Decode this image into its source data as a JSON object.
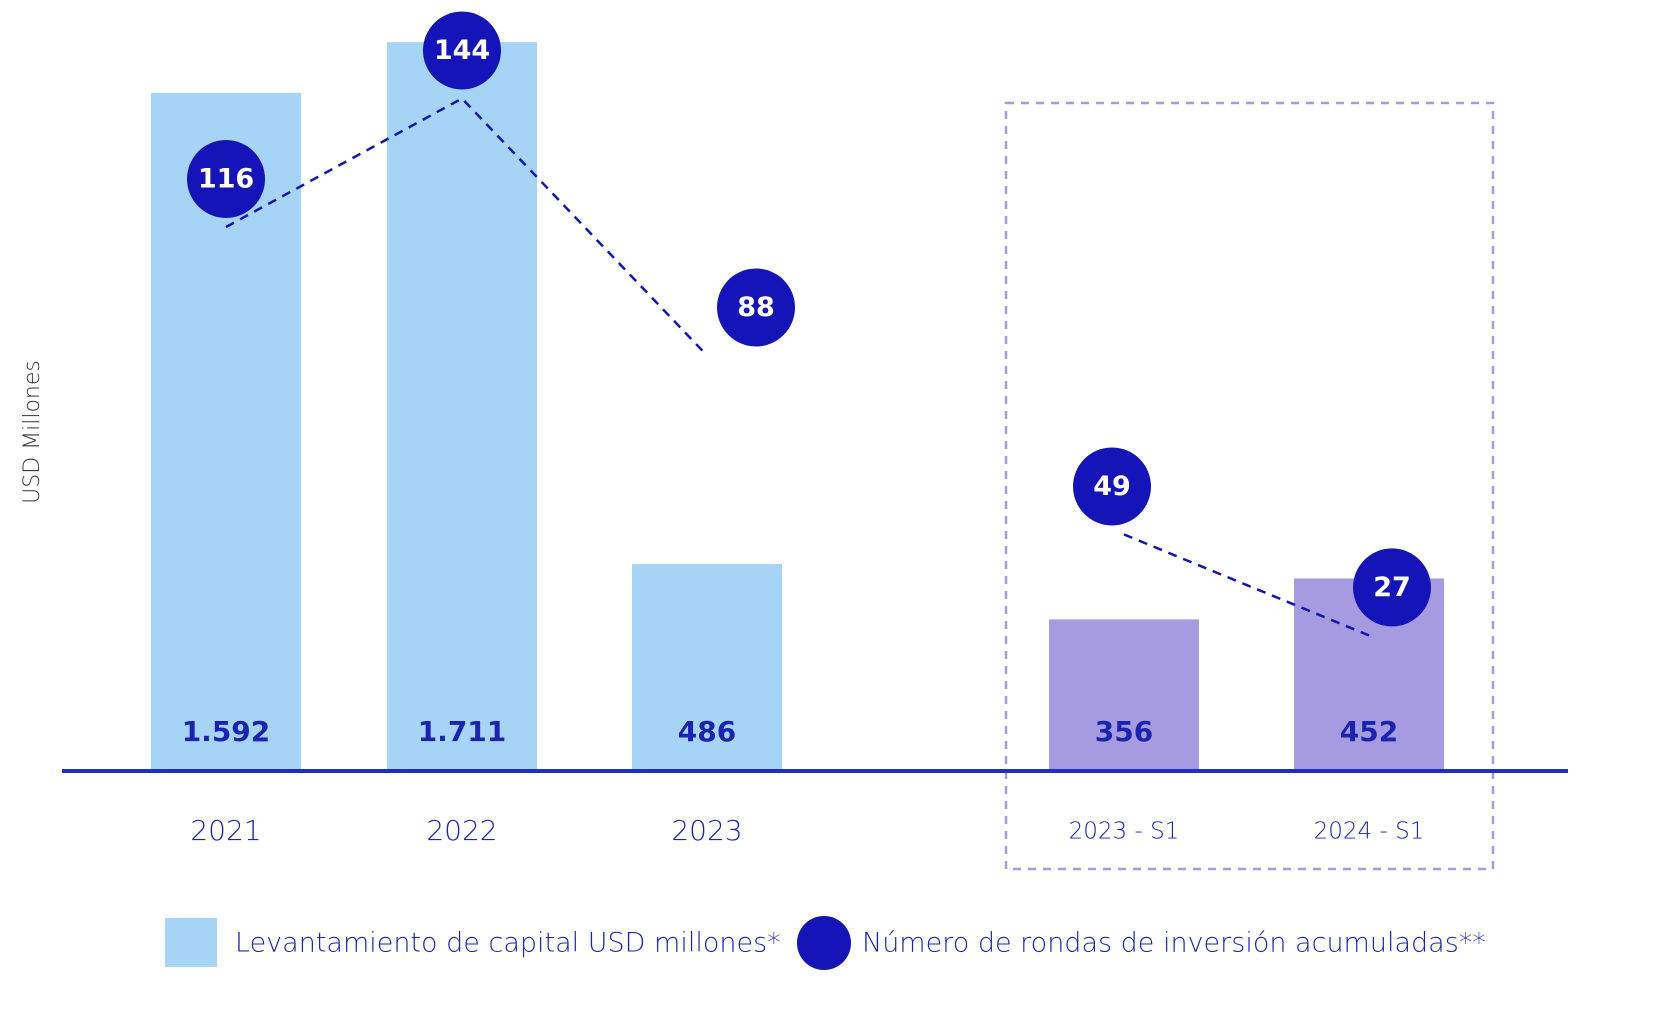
{
  "chart_data": {
    "type": "bar",
    "y_label": "USD Millones",
    "categories": [
      "2021",
      "2022",
      "2023",
      "2023 - S1",
      "2024 - S1"
    ],
    "ylim": [
      0,
      1810
    ],
    "y2lim": [
      -13,
      155
    ],
    "series": [
      {
        "name": "Levantamiento de capital USD millones*",
        "type": "bar",
        "colors": [
          "#a6d4f7",
          "#a6d4f7",
          "#a6d4f7",
          "#a69ae0",
          "#a69ae0"
        ],
        "values": [
          1592,
          1711,
          486,
          356,
          452
        ],
        "value_labels": [
          "1.592",
          "1.711",
          "486",
          "356",
          "452"
        ]
      },
      {
        "name": "Número de rondas de inversión acumuladas**",
        "type": "line",
        "axis": "y2",
        "color": "#1414b8",
        "values": [
          116,
          144,
          88,
          49,
          27
        ]
      }
    ]
  }
}
